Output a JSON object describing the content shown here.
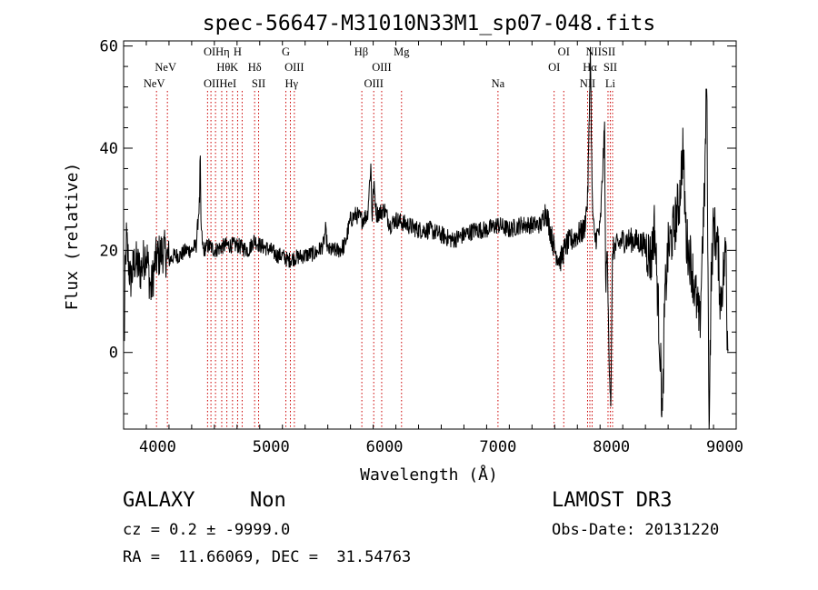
{
  "chart_data": {
    "type": "line",
    "title": "spec-56647-M31010N33M1_sp07-048.fits",
    "xlabel": "Wavelength (Å)",
    "ylabel": "Flux (relative)",
    "xlim": [
      3700,
      9100
    ],
    "ylim": [
      -15,
      61
    ],
    "xticks": [
      4000,
      5000,
      6000,
      7000,
      8000,
      9000
    ],
    "yticks": [
      0,
      20,
      40,
      60
    ],
    "xtick_labels": [
      "4000",
      "5000",
      "6000",
      "7000",
      "8000",
      "9000"
    ],
    "ytick_labels": [
      "0",
      "20",
      "40",
      "60"
    ],
    "line_color": "#000000",
    "marker_color": "#cc0000",
    "spectrum_anchors": [
      [
        3700,
        18
      ],
      [
        3705,
        0
      ],
      [
        3712,
        14
      ],
      [
        3725,
        22
      ],
      [
        3760,
        14
      ],
      [
        3800,
        18
      ],
      [
        3850,
        16
      ],
      [
        3900,
        20
      ],
      [
        3940,
        12
      ],
      [
        3980,
        18
      ],
      [
        4050,
        20
      ],
      [
        4100,
        18
      ],
      [
        4150,
        19
      ],
      [
        4200,
        19
      ],
      [
        4250,
        20
      ],
      [
        4300,
        20
      ],
      [
        4340,
        21
      ],
      [
        4370,
        30
      ],
      [
        4375,
        40
      ],
      [
        4382,
        25
      ],
      [
        4400,
        20
      ],
      [
        4450,
        21
      ],
      [
        4500,
        20
      ],
      [
        4600,
        21
      ],
      [
        4700,
        21
      ],
      [
        4800,
        20
      ],
      [
        4850,
        22
      ],
      [
        4900,
        21
      ],
      [
        5000,
        20
      ],
      [
        5050,
        19
      ],
      [
        5100,
        19
      ],
      [
        5150,
        18
      ],
      [
        5200,
        18.5
      ],
      [
        5300,
        19
      ],
      [
        5400,
        19.5
      ],
      [
        5460,
        21
      ],
      [
        5480,
        24
      ],
      [
        5500,
        20
      ],
      [
        5550,
        20
      ],
      [
        5600,
        20
      ],
      [
        5650,
        21
      ],
      [
        5700,
        26
      ],
      [
        5750,
        27
      ],
      [
        5800,
        26
      ],
      [
        5850,
        27
      ],
      [
        5880,
        37
      ],
      [
        5890,
        26
      ],
      [
        5905,
        33
      ],
      [
        5930,
        27
      ],
      [
        6000,
        28
      ],
      [
        6050,
        25
      ],
      [
        6100,
        26
      ],
      [
        6200,
        25
      ],
      [
        6300,
        24
      ],
      [
        6400,
        24
      ],
      [
        6500,
        23
      ],
      [
        6600,
        22
      ],
      [
        6700,
        23
      ],
      [
        6800,
        24
      ],
      [
        6900,
        24
      ],
      [
        7000,
        25
      ],
      [
        7100,
        24
      ],
      [
        7200,
        25
      ],
      [
        7300,
        25
      ],
      [
        7380,
        25
      ],
      [
        7420,
        28
      ],
      [
        7460,
        24
      ],
      [
        7500,
        20
      ],
      [
        7550,
        18
      ],
      [
        7600,
        21
      ],
      [
        7650,
        22
      ],
      [
        7700,
        23
      ],
      [
        7760,
        24
      ],
      [
        7790,
        30
      ],
      [
        7800,
        40
      ],
      [
        7815,
        60
      ],
      [
        7830,
        30
      ],
      [
        7850,
        22
      ],
      [
        7900,
        24
      ],
      [
        7940,
        44
      ],
      [
        7950,
        10
      ],
      [
        7960,
        22
      ],
      [
        7980,
        -1
      ],
      [
        7995,
        -10
      ],
      [
        8010,
        20
      ],
      [
        8100,
        22
      ],
      [
        8200,
        22
      ],
      [
        8300,
        21
      ],
      [
        8350,
        18
      ],
      [
        8380,
        25
      ],
      [
        8400,
        15
      ],
      [
        8430,
        0
      ],
      [
        8450,
        -13
      ],
      [
        8470,
        10
      ],
      [
        8500,
        20
      ],
      [
        8550,
        24
      ],
      [
        8600,
        30
      ],
      [
        8630,
        40
      ],
      [
        8660,
        22
      ],
      [
        8700,
        18
      ],
      [
        8750,
        10
      ],
      [
        8780,
        5
      ],
      [
        8800,
        20
      ],
      [
        8820,
        30
      ],
      [
        8840,
        54
      ],
      [
        8850,
        22
      ],
      [
        8860,
        -15
      ],
      [
        8880,
        15
      ],
      [
        8900,
        25
      ],
      [
        8940,
        20
      ],
      [
        8960,
        10
      ],
      [
        9000,
        18
      ],
      [
        9010,
        22
      ],
      [
        9020,
        5
      ],
      [
        9030,
        2
      ]
    ],
    "line_markers": [
      {
        "wave": 3990,
        "label": "NeV"
      },
      {
        "wave": 4086,
        "label": "NeV"
      },
      {
        "wave": 4440,
        "label": "OII"
      },
      {
        "wave": 4470,
        "label": "OI"
      },
      {
        "wave": 4510,
        "label": "Hθ"
      },
      {
        "wave": 4565,
        "label": "Hη"
      },
      {
        "wave": 4610,
        "label": "HeI"
      },
      {
        "wave": 4660,
        "label": "K"
      },
      {
        "wave": 4705,
        "label": "H"
      },
      {
        "wave": 4745,
        "label": ""
      },
      {
        "wave": 4855,
        "label": "Hδ"
      },
      {
        "wave": 4890,
        "label": "SII"
      },
      {
        "wave": 5130,
        "label": "G"
      },
      {
        "wave": 5170,
        "label": "Hγ"
      },
      {
        "wave": 5205,
        "label": "OIII"
      },
      {
        "wave": 5800,
        "label": "Hβ"
      },
      {
        "wave": 5905,
        "label": "OIII"
      },
      {
        "wave": 5975,
        "label": "OIII"
      },
      {
        "wave": 6150,
        "label": "Mg"
      },
      {
        "wave": 7000,
        "label": "Na"
      },
      {
        "wave": 7495,
        "label": "OI"
      },
      {
        "wave": 7580,
        "label": "OI"
      },
      {
        "wave": 7790,
        "label": "NII"
      },
      {
        "wave": 7810,
        "label": "Hα"
      },
      {
        "wave": 7830,
        "label": "NII"
      },
      {
        "wave": 7970,
        "label": "SII"
      },
      {
        "wave": 7990,
        "label": "SII"
      },
      {
        "wave": 8010,
        "label": "Li"
      }
    ],
    "label_rows": [
      [
        {
          "text": "OIHη",
          "wave": 4520
        },
        {
          "text": "H",
          "wave": 4705
        },
        {
          "text": "G",
          "wave": 5130
        },
        {
          "text": "Hβ",
          "wave": 5795
        },
        {
          "text": "Mg",
          "wave": 6150
        },
        {
          "text": "OI",
          "wave": 7580
        },
        {
          "text": "NIISII",
          "wave": 7905
        }
      ],
      [
        {
          "text": "NeV",
          "wave": 4070
        },
        {
          "text": "Hθ",
          "wave": 4580
        },
        {
          "text": "K",
          "wave": 4675
        },
        {
          "text": "Hδ",
          "wave": 4855
        },
        {
          "text": "OIII",
          "wave": 5205
        },
        {
          "text": "OIII",
          "wave": 5975
        },
        {
          "text": "OI",
          "wave": 7495
        },
        {
          "text": "Hα",
          "wave": 7810
        },
        {
          "text": "SII",
          "wave": 7990
        }
      ],
      [
        {
          "text": "NeV",
          "wave": 3970
        },
        {
          "text": "OIIHeI",
          "wave": 4550
        },
        {
          "text": "SII",
          "wave": 4890
        },
        {
          "text": "Hγ",
          "wave": 5180
        },
        {
          "text": "OIII",
          "wave": 5905
        },
        {
          "text": "Na",
          "wave": 7000
        },
        {
          "text": "NII",
          "wave": 7790
        },
        {
          "text": "Li",
          "wave": 7990
        }
      ]
    ]
  },
  "info": {
    "object_class": "GALAXY",
    "subclass": "Non",
    "survey": "LAMOST DR3",
    "redshift": "cz = 0.2 ± -9999.0",
    "obs_date": "Obs-Date: 20131220",
    "coords": "RA =  11.66069, DEC =  31.54763"
  }
}
